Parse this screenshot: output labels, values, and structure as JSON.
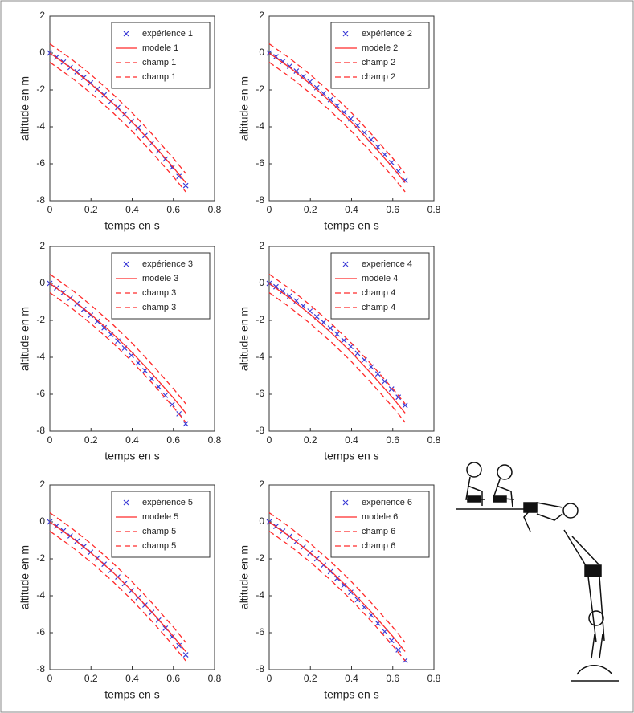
{
  "chart_data": [
    {
      "type": "line",
      "xlabel": "temps en s",
      "ylabel": "altitude en m",
      "xlim": [
        0,
        0.8
      ],
      "ylim": [
        -8,
        2
      ],
      "xticks": [
        0,
        0.2,
        0.4,
        0.6,
        0.8
      ],
      "yticks": [
        -8,
        -6,
        -4,
        -2,
        0,
        2
      ],
      "legend": "upper right",
      "grid": false,
      "series": [
        {
          "name": "expérience 1",
          "color": "#3a3ad6",
          "marker": "x",
          "x": [
            0,
            0.033,
            0.066,
            0.099,
            0.132,
            0.165,
            0.198,
            0.231,
            0.264,
            0.297,
            0.33,
            0.363,
            0.396,
            0.429,
            0.462,
            0.495,
            0.528,
            0.561,
            0.594,
            0.627,
            0.66
          ],
          "values": [
            0,
            -0.22,
            -0.49,
            -0.78,
            -1.02,
            -1.33,
            -1.62,
            -1.95,
            -2.27,
            -2.62,
            -2.95,
            -3.31,
            -3.7,
            -4.05,
            -4.47,
            -4.88,
            -5.3,
            -5.74,
            -6.2,
            -6.68,
            -7.18
          ]
        },
        {
          "name": "modele 1",
          "color": "#ff2a2a",
          "linestyle": "solid",
          "x": [
            0,
            0.1,
            0.2,
            0.3,
            0.4,
            0.5,
            0.6,
            0.66
          ],
          "values": [
            0,
            -0.79,
            -1.68,
            -2.66,
            -3.74,
            -4.93,
            -6.2,
            -7.02
          ]
        },
        {
          "name": "champ 1",
          "color": "#ff2a2a",
          "linestyle": "dashed",
          "x": [
            0,
            0.1,
            0.2,
            0.3,
            0.4,
            0.5,
            0.6,
            0.66
          ],
          "values": [
            0.5,
            -0.29,
            -1.18,
            -2.16,
            -3.24,
            -4.43,
            -5.7,
            -6.52
          ]
        },
        {
          "name": "champ 1",
          "color": "#ff2a2a",
          "linestyle": "dashed",
          "x": [
            0,
            0.1,
            0.2,
            0.3,
            0.4,
            0.5,
            0.6,
            0.66
          ],
          "values": [
            -0.5,
            -1.29,
            -2.18,
            -3.16,
            -4.24,
            -5.43,
            -6.7,
            -7.52
          ]
        }
      ]
    },
    {
      "type": "line",
      "xlabel": "temps en s",
      "ylabel": "altitude en m",
      "xlim": [
        0,
        0.8
      ],
      "ylim": [
        -8,
        2
      ],
      "xticks": [
        0,
        0.2,
        0.4,
        0.6,
        0.8
      ],
      "yticks": [
        -8,
        -6,
        -4,
        -2,
        0,
        2
      ],
      "legend": "upper right",
      "grid": false,
      "series": [
        {
          "name": "expérience 2",
          "color": "#3a3ad6",
          "marker": "x",
          "x": [
            0,
            0.033,
            0.066,
            0.099,
            0.132,
            0.165,
            0.198,
            0.231,
            0.264,
            0.297,
            0.33,
            0.363,
            0.396,
            0.429,
            0.462,
            0.495,
            0.528,
            0.561,
            0.594,
            0.627,
            0.66
          ],
          "values": [
            0,
            -0.2,
            -0.46,
            -0.72,
            -0.98,
            -1.27,
            -1.56,
            -1.88,
            -2.2,
            -2.53,
            -2.86,
            -3.21,
            -3.57,
            -3.93,
            -4.31,
            -4.69,
            -5.09,
            -5.5,
            -5.93,
            -6.4,
            -6.9
          ]
        },
        {
          "name": "modele 2",
          "color": "#ff2a2a",
          "linestyle": "solid",
          "x": [
            0,
            0.1,
            0.2,
            0.3,
            0.4,
            0.5,
            0.6,
            0.66
          ],
          "values": [
            0,
            -0.79,
            -1.68,
            -2.66,
            -3.74,
            -4.93,
            -6.2,
            -7.02
          ]
        },
        {
          "name": "champ 2",
          "color": "#ff2a2a",
          "linestyle": "dashed",
          "x": [
            0,
            0.1,
            0.2,
            0.3,
            0.4,
            0.5,
            0.6,
            0.66
          ],
          "values": [
            0.5,
            -0.29,
            -1.18,
            -2.16,
            -3.24,
            -4.43,
            -5.7,
            -6.52
          ]
        },
        {
          "name": "champ 2",
          "color": "#ff2a2a",
          "linestyle": "dashed",
          "x": [
            0,
            0.1,
            0.2,
            0.3,
            0.4,
            0.5,
            0.6,
            0.66
          ],
          "values": [
            -0.5,
            -1.29,
            -2.18,
            -3.16,
            -4.24,
            -5.43,
            -6.7,
            -7.52
          ]
        }
      ]
    },
    {
      "type": "line",
      "xlabel": "temps en s",
      "ylabel": "altitude en m",
      "xlim": [
        0,
        0.8
      ],
      "ylim": [
        -8,
        2
      ],
      "xticks": [
        0,
        0.2,
        0.4,
        0.6,
        0.8
      ],
      "yticks": [
        -8,
        -6,
        -4,
        -2,
        0,
        2
      ],
      "legend": "upper right",
      "grid": false,
      "series": [
        {
          "name": "expérience 3",
          "color": "#3a3ad6",
          "marker": "x",
          "x": [
            0,
            0.033,
            0.066,
            0.099,
            0.132,
            0.165,
            0.198,
            0.231,
            0.264,
            0.297,
            0.33,
            0.363,
            0.396,
            0.429,
            0.462,
            0.495,
            0.528,
            0.561,
            0.594,
            0.627,
            0.66
          ],
          "values": [
            0,
            -0.24,
            -0.5,
            -0.8,
            -1.1,
            -1.4,
            -1.72,
            -2.05,
            -2.4,
            -2.76,
            -3.12,
            -3.5,
            -3.9,
            -4.3,
            -4.72,
            -5.16,
            -5.6,
            -6.06,
            -6.56,
            -7.06,
            -7.6
          ]
        },
        {
          "name": "modele 3",
          "color": "#ff2a2a",
          "linestyle": "solid",
          "x": [
            0,
            0.1,
            0.2,
            0.3,
            0.4,
            0.5,
            0.6,
            0.66
          ],
          "values": [
            0,
            -0.79,
            -1.68,
            -2.66,
            -3.74,
            -4.93,
            -6.2,
            -7.02
          ]
        },
        {
          "name": "champ 3",
          "color": "#ff2a2a",
          "linestyle": "dashed",
          "x": [
            0,
            0.1,
            0.2,
            0.3,
            0.4,
            0.5,
            0.6,
            0.66
          ],
          "values": [
            0.5,
            -0.29,
            -1.18,
            -2.16,
            -3.24,
            -4.43,
            -5.7,
            -6.52
          ]
        },
        {
          "name": "champ 3",
          "color": "#ff2a2a",
          "linestyle": "dashed",
          "x": [
            0,
            0.1,
            0.2,
            0.3,
            0.4,
            0.5,
            0.6,
            0.66
          ],
          "values": [
            -0.5,
            -1.29,
            -2.18,
            -3.16,
            -4.24,
            -5.43,
            -6.7,
            -7.52
          ]
        }
      ]
    },
    {
      "type": "line",
      "xlabel": "temps en s",
      "ylabel": "altitude en m",
      "xlim": [
        0,
        0.8
      ],
      "ylim": [
        -8,
        2
      ],
      "xticks": [
        0,
        0.2,
        0.4,
        0.6,
        0.8
      ],
      "yticks": [
        -8,
        -6,
        -4,
        -2,
        0,
        2
      ],
      "legend": "upper right",
      "grid": false,
      "series": [
        {
          "name": "experience 4",
          "color": "#3a3ad6",
          "marker": "x",
          "x": [
            0,
            0.033,
            0.066,
            0.099,
            0.132,
            0.165,
            0.198,
            0.231,
            0.264,
            0.297,
            0.33,
            0.363,
            0.396,
            0.429,
            0.462,
            0.495,
            0.528,
            0.561,
            0.594,
            0.627,
            0.66
          ],
          "values": [
            0,
            -0.18,
            -0.42,
            -0.68,
            -0.95,
            -1.22,
            -1.5,
            -1.8,
            -2.1,
            -2.42,
            -2.74,
            -3.08,
            -3.42,
            -3.78,
            -4.14,
            -4.52,
            -4.9,
            -5.3,
            -5.72,
            -6.16,
            -6.6
          ]
        },
        {
          "name": "modele 4",
          "color": "#ff2a2a",
          "linestyle": "solid",
          "x": [
            0,
            0.1,
            0.2,
            0.3,
            0.4,
            0.5,
            0.6,
            0.66
          ],
          "values": [
            0,
            -0.79,
            -1.68,
            -2.66,
            -3.74,
            -4.93,
            -6.2,
            -7.02
          ]
        },
        {
          "name": "champ 4",
          "color": "#ff2a2a",
          "linestyle": "dashed",
          "x": [
            0,
            0.1,
            0.2,
            0.3,
            0.4,
            0.5,
            0.6,
            0.66
          ],
          "values": [
            0.5,
            -0.29,
            -1.18,
            -2.16,
            -3.24,
            -4.43,
            -5.7,
            -6.52
          ]
        },
        {
          "name": "champ 4",
          "color": "#ff2a2a",
          "linestyle": "dashed",
          "x": [
            0,
            0.1,
            0.2,
            0.3,
            0.4,
            0.5,
            0.6,
            0.66
          ],
          "values": [
            -0.5,
            -1.29,
            -2.18,
            -3.16,
            -4.24,
            -5.43,
            -6.7,
            -7.52
          ]
        }
      ]
    },
    {
      "type": "line",
      "xlabel": "temps en s",
      "ylabel": "altitude en m",
      "xlim": [
        0,
        0.8
      ],
      "ylim": [
        -8,
        2
      ],
      "xticks": [
        0,
        0.2,
        0.4,
        0.6,
        0.8
      ],
      "yticks": [
        -8,
        -6,
        -4,
        -2,
        0,
        2
      ],
      "legend": "upper right",
      "grid": false,
      "series": [
        {
          "name": "expérience 5",
          "color": "#3a3ad6",
          "marker": "x",
          "x": [
            0,
            0.033,
            0.066,
            0.099,
            0.132,
            0.165,
            0.198,
            0.231,
            0.264,
            0.297,
            0.33,
            0.363,
            0.396,
            0.429,
            0.462,
            0.495,
            0.528,
            0.561,
            0.594,
            0.627,
            0.66
          ],
          "values": [
            0,
            -0.22,
            -0.48,
            -0.76,
            -1.04,
            -1.34,
            -1.64,
            -1.96,
            -2.29,
            -2.63,
            -2.98,
            -3.34,
            -3.72,
            -4.1,
            -4.5,
            -4.9,
            -5.32,
            -5.76,
            -6.22,
            -6.7,
            -7.2
          ]
        },
        {
          "name": "modele 5",
          "color": "#ff2a2a",
          "linestyle": "solid",
          "x": [
            0,
            0.1,
            0.2,
            0.3,
            0.4,
            0.5,
            0.6,
            0.66
          ],
          "values": [
            0,
            -0.79,
            -1.68,
            -2.66,
            -3.74,
            -4.93,
            -6.2,
            -7.02
          ]
        },
        {
          "name": "champ 5",
          "color": "#ff2a2a",
          "linestyle": "dashed",
          "x": [
            0,
            0.1,
            0.2,
            0.3,
            0.4,
            0.5,
            0.6,
            0.66
          ],
          "values": [
            0.5,
            -0.29,
            -1.18,
            -2.16,
            -3.24,
            -4.43,
            -5.7,
            -6.52
          ]
        },
        {
          "name": "champ 5",
          "color": "#ff2a2a",
          "linestyle": "dashed",
          "x": [
            0,
            0.1,
            0.2,
            0.3,
            0.4,
            0.5,
            0.6,
            0.66
          ],
          "values": [
            -0.5,
            -1.29,
            -2.18,
            -3.16,
            -4.24,
            -5.43,
            -6.7,
            -7.52
          ]
        }
      ]
    },
    {
      "type": "line",
      "xlabel": "temps en s",
      "ylabel": "altitude en m",
      "xlim": [
        0,
        0.8
      ],
      "ylim": [
        -8,
        2
      ],
      "xticks": [
        0,
        0.2,
        0.4,
        0.6,
        0.8
      ],
      "yticks": [
        -8,
        -6,
        -4,
        -2,
        0,
        2
      ],
      "legend": "upper right",
      "grid": false,
      "series": [
        {
          "name": "expérience 6",
          "color": "#3a3ad6",
          "marker": "x",
          "x": [
            0,
            0.033,
            0.066,
            0.099,
            0.132,
            0.165,
            0.198,
            0.231,
            0.264,
            0.297,
            0.33,
            0.363,
            0.396,
            0.429,
            0.462,
            0.495,
            0.528,
            0.561,
            0.594,
            0.627,
            0.66
          ],
          "values": [
            0,
            -0.24,
            -0.5,
            -0.78,
            -1.07,
            -1.37,
            -1.68,
            -2.0,
            -2.34,
            -2.69,
            -3.05,
            -3.42,
            -3.81,
            -4.21,
            -4.62,
            -5.05,
            -5.49,
            -5.94,
            -6.42,
            -6.93,
            -7.5
          ]
        },
        {
          "name": "modele 6",
          "color": "#ff2a2a",
          "linestyle": "solid",
          "x": [
            0,
            0.1,
            0.2,
            0.3,
            0.4,
            0.5,
            0.6,
            0.66
          ],
          "values": [
            0,
            -0.79,
            -1.68,
            -2.66,
            -3.74,
            -4.93,
            -6.2,
            -7.02
          ]
        },
        {
          "name": "champ 6",
          "color": "#ff2a2a",
          "linestyle": "dashed",
          "x": [
            0,
            0.1,
            0.2,
            0.3,
            0.4,
            0.5,
            0.6,
            0.66
          ],
          "values": [
            0.5,
            -0.29,
            -1.18,
            -2.16,
            -3.24,
            -4.43,
            -5.7,
            -6.52
          ]
        },
        {
          "name": "champ 6",
          "color": "#ff2a2a",
          "linestyle": "dashed",
          "x": [
            0,
            0.1,
            0.2,
            0.3,
            0.4,
            0.5,
            0.6,
            0.66
          ],
          "values": [
            -0.5,
            -1.29,
            -2.18,
            -3.16,
            -4.24,
            -5.43,
            -6.7,
            -7.52
          ]
        }
      ]
    }
  ]
}
